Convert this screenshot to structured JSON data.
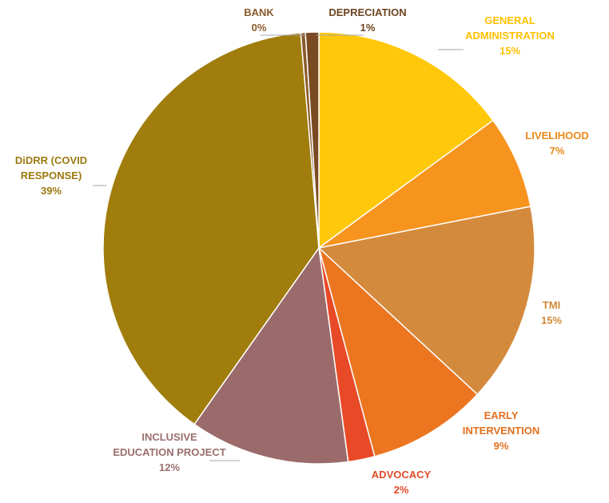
{
  "chart_data": {
    "type": "pie",
    "title": "",
    "slices": [
      {
        "label": "GENERAL ADMINISTRATION",
        "lines": [
          "GENERAL",
          "ADMINISTRATION"
        ],
        "value": 15,
        "value_label": "15%",
        "color": "#FFC80A",
        "label_color": "#FFC000"
      },
      {
        "label": "LIVELIHOOD",
        "lines": [
          "LIVELIHOOD"
        ],
        "value": 7,
        "value_label": "7%",
        "color": "#F7941D",
        "label_color": "#EC8A1A"
      },
      {
        "label": "TMI",
        "lines": [
          "TMI"
        ],
        "value": 15,
        "value_label": "15%",
        "color": "#D48A3C",
        "label_color": "#D08A3A"
      },
      {
        "label": "EARLY INTERVENTION",
        "lines": [
          "EARLY",
          "INTERVENTION"
        ],
        "value": 9,
        "value_label": "9%",
        "color": "#EC7620",
        "label_color": "#E2701E"
      },
      {
        "label": "ADVOCACY",
        "lines": [
          "ADVOCACY"
        ],
        "value": 2,
        "value_label": "2%",
        "color": "#E84A27",
        "label_color": "#E04A28"
      },
      {
        "label": "INCLUSIVE EDUCATION PROJECT",
        "lines": [
          "INCLUSIVE",
          "EDUCATION PROJECT"
        ],
        "value": 12,
        "value_label": "12%",
        "color": "#9B6B6B",
        "label_color": "#9A6E6E"
      },
      {
        "label": "DiDRR (COVID RESPONSE)",
        "lines": [
          "DiDRR (COVID",
          "RESPONSE)"
        ],
        "value": 39,
        "value_label": "39%",
        "color": "#A07D0C",
        "label_color": "#9C7A10"
      },
      {
        "label": "BANK",
        "lines": [
          "BANK"
        ],
        "value": 0.35,
        "value_label": "0%",
        "color": "#8A5A2B",
        "label_color": "#8A5A2B"
      },
      {
        "label": "DEPRECIATION",
        "lines": [
          "DEPRECIATION"
        ],
        "value": 1,
        "value_label": "1%",
        "color": "#7A4A22",
        "label_color": "#6B4520"
      }
    ]
  }
}
